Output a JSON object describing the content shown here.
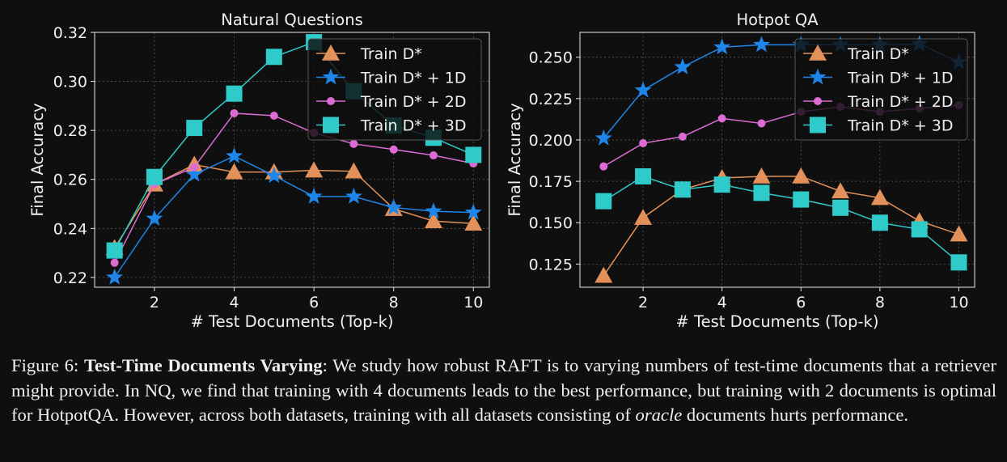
{
  "chart_data": [
    {
      "type": "line",
      "title": "Natural Questions",
      "xlabel": "# Test Documents (Top-k)",
      "ylabel": "Final Accuracy",
      "xlim": [
        0.5,
        10.4
      ],
      "ylim": [
        0.216,
        0.32
      ],
      "xticks": [
        2,
        4,
        6,
        8,
        10
      ],
      "yticks": [
        0.22,
        0.24,
        0.26,
        0.28,
        0.3,
        0.32
      ],
      "ytick_labels": [
        "0.22",
        "0.24",
        "0.26",
        "0.28",
        "0.30",
        "0.32"
      ],
      "grid": true,
      "legend_position": "top-right",
      "x": [
        1,
        2,
        3,
        4,
        5,
        6,
        7,
        8,
        9,
        10
      ],
      "series": [
        {
          "name": "Train D*",
          "marker": "triangle",
          "color": "#e3915a",
          "values": [
            0.232,
            0.258,
            0.266,
            0.263,
            0.263,
            0.2637,
            0.2633,
            0.248,
            0.243,
            0.242
          ]
        },
        {
          "name": "Train D* + 1D",
          "marker": "star",
          "color": "#1f85e8",
          "values": [
            0.22,
            0.244,
            0.262,
            0.2695,
            0.2615,
            0.253,
            0.253,
            0.2485,
            0.247,
            0.2465
          ]
        },
        {
          "name": "Train D* + 2D",
          "marker": "circle",
          "color": "#dc6bd3",
          "values": [
            0.226,
            0.258,
            0.265,
            0.287,
            0.286,
            0.279,
            0.2745,
            0.2722,
            0.2698,
            0.2665
          ]
        },
        {
          "name": "Train D* + 3D",
          "marker": "square",
          "color": "#2ecbca",
          "values": [
            0.231,
            0.261,
            0.281,
            0.295,
            0.31,
            0.316,
            0.296,
            0.282,
            0.277,
            0.27
          ]
        }
      ]
    },
    {
      "type": "line",
      "title": "Hotpot QA",
      "xlabel": "# Test Documents (Top-k)",
      "ylabel": "Final Accuracy",
      "xlim": [
        0.4,
        10.4
      ],
      "ylim": [
        0.111,
        0.265
      ],
      "xticks": [
        2,
        4,
        6,
        8,
        10
      ],
      "yticks": [
        0.125,
        0.15,
        0.175,
        0.2,
        0.225,
        0.25
      ],
      "ytick_labels": [
        "0.125",
        "0.150",
        "0.175",
        "0.200",
        "0.225",
        "0.250"
      ],
      "grid": true,
      "legend_position": "top-right",
      "x": [
        1,
        2,
        3,
        4,
        5,
        6,
        7,
        8,
        9,
        10
      ],
      "series": [
        {
          "name": "Train D*",
          "marker": "triangle",
          "color": "#e3915a",
          "values": [
            0.118,
            0.153,
            0.17,
            0.177,
            0.178,
            0.178,
            0.169,
            0.165,
            0.151,
            0.143
          ]
        },
        {
          "name": "Train D* + 1D",
          "marker": "star",
          "color": "#1f85e8",
          "values": [
            0.201,
            0.23,
            0.244,
            0.256,
            0.2575,
            0.2575,
            0.2575,
            0.2575,
            0.258,
            0.247
          ]
        },
        {
          "name": "Train D* + 2D",
          "marker": "circle",
          "color": "#dc6bd3",
          "values": [
            0.184,
            0.198,
            0.202,
            0.213,
            0.21,
            0.217,
            0.22,
            0.217,
            0.219,
            0.221
          ]
        },
        {
          "name": "Train D* + 3D",
          "marker": "square",
          "color": "#2ecbca",
          "values": [
            0.163,
            0.178,
            0.17,
            0.173,
            0.168,
            0.164,
            0.159,
            0.15,
            0.146,
            0.126
          ]
        }
      ]
    }
  ],
  "caption": {
    "label": "Figure 6: ",
    "bold": "Test-Time Documents Varying",
    "text1": ": We study how robust RAFT is to varying numbers of test-time documents that a retriever might provide. In NQ, we find that training with 4 documents leads to the best performance, but training with 2 documents is optimal for HotpotQA. However, across both datasets, training with all datasets consisting of ",
    "italic": "oracle",
    "text2": " documents hurts performance."
  }
}
